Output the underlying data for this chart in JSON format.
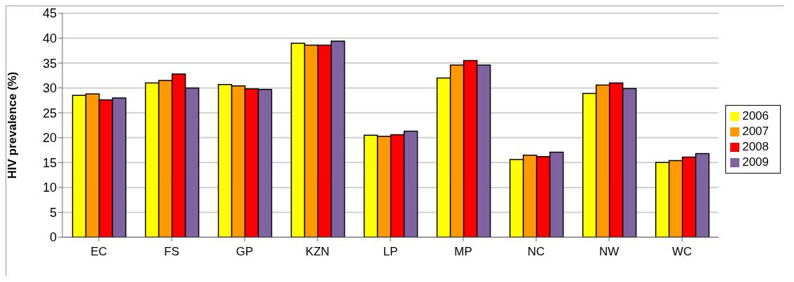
{
  "chart_data": {
    "type": "bar",
    "ylabel": "HIV prevalence (%)",
    "categories": [
      "EC",
      "FS",
      "GP",
      "KZN",
      "LP",
      "MP",
      "NC",
      "NW",
      "WC"
    ],
    "series": [
      {
        "name": "2006",
        "color": "#ffff00",
        "values": [
          28.5,
          31.0,
          30.7,
          39.0,
          20.5,
          32.0,
          15.6,
          28.9,
          15.0
        ]
      },
      {
        "name": "2007",
        "color": "#ff9900",
        "values": [
          28.8,
          31.5,
          30.4,
          38.6,
          20.3,
          34.6,
          16.5,
          30.6,
          15.4
        ]
      },
      {
        "name": "2008",
        "color": "#ff0000",
        "values": [
          27.6,
          32.8,
          29.8,
          38.6,
          20.6,
          35.5,
          16.2,
          31.0,
          16.1
        ]
      },
      {
        "name": "2009",
        "color": "#8064a2",
        "values": [
          28.0,
          30.0,
          29.7,
          39.4,
          21.3,
          34.6,
          17.1,
          29.9,
          16.8
        ]
      }
    ],
    "ylim": [
      0,
      45
    ],
    "yticks": [
      0,
      5,
      10,
      15,
      20,
      25,
      30,
      35,
      40,
      45
    ],
    "grid": "y",
    "legend": "right"
  }
}
